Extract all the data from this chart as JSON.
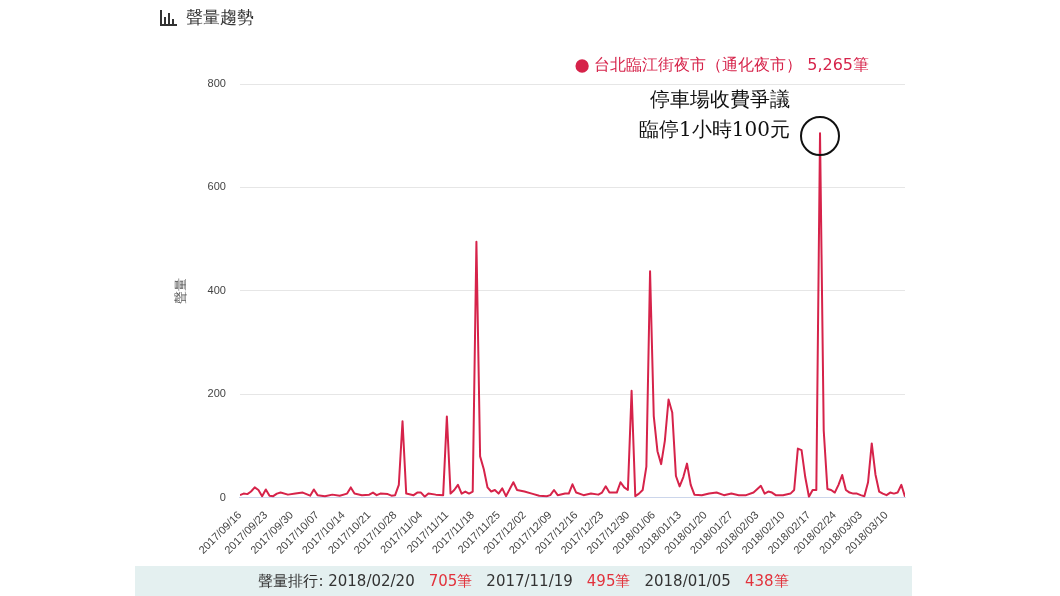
{
  "chart_data": {
    "type": "line",
    "title": "聲量趨勢",
    "ylabel": "聲量",
    "xlim": [
      "2017-09-16",
      "2018-03-15"
    ],
    "xticks": [
      {
        "value": "2017-09-16",
        "label": "2017/09/16"
      },
      {
        "value": "2017-09-23",
        "label": "2017/09/23"
      },
      {
        "value": "2017-09-30",
        "label": "2017/09/30"
      },
      {
        "value": "2017-10-07",
        "label": "2017/10/07"
      },
      {
        "value": "2017-10-14",
        "label": "2017/10/14"
      },
      {
        "value": "2017-10-21",
        "label": "2017/10/21"
      },
      {
        "value": "2017-10-28",
        "label": "2017/10/28"
      },
      {
        "value": "2017-11-04",
        "label": "2017/11/04"
      },
      {
        "value": "2017-11-11",
        "label": "2017/11/11"
      },
      {
        "value": "2017-11-18",
        "label": "2017/11/18"
      },
      {
        "value": "2017-11-25",
        "label": "2017/11/25"
      },
      {
        "value": "2017-12-02",
        "label": "2017/12/02"
      },
      {
        "value": "2017-12-09",
        "label": "2017/12/09"
      },
      {
        "value": "2017-12-16",
        "label": "2017/12/16"
      },
      {
        "value": "2017-12-23",
        "label": "2017/12/23"
      },
      {
        "value": "2017-12-30",
        "label": "2017/12/30"
      },
      {
        "value": "2018-01-06",
        "label": "2018/01/06"
      },
      {
        "value": "2018-01-13",
        "label": "2018/01/13"
      },
      {
        "value": "2018-01-20",
        "label": "2018/01/20"
      },
      {
        "value": "2018-01-27",
        "label": "2018/01/27"
      },
      {
        "value": "2018-02-03",
        "label": "2018/02/03"
      },
      {
        "value": "2018-02-10",
        "label": "2018/02/10"
      },
      {
        "value": "2018-02-17",
        "label": "2018/02/17"
      },
      {
        "value": "2018-02-24",
        "label": "2018/02/24"
      },
      {
        "value": "2018-03-03",
        "label": "2018/03/03"
      },
      {
        "value": "2018-03-10",
        "label": "2018/03/10"
      }
    ],
    "ylim": [
      0,
      800
    ],
    "yticks": [
      0,
      200,
      400,
      600,
      800
    ],
    "grid": "y",
    "legend": "top right",
    "marker": "none",
    "line_style": "solid",
    "x": [
      "2017-09-16",
      "2017-09-17",
      "2017-09-18",
      "2017-09-19",
      "2017-09-20",
      "2017-09-21",
      "2017-09-22",
      "2017-09-23",
      "2017-09-24",
      "2017-09-25",
      "2017-09-26",
      "2017-09-27",
      "2017-09-29",
      "2017-10-01",
      "2017-10-03",
      "2017-10-05",
      "2017-10-06",
      "2017-10-07",
      "2017-10-09",
      "2017-10-11",
      "2017-10-13",
      "2017-10-15",
      "2017-10-16",
      "2017-10-17",
      "2017-10-19",
      "2017-10-21",
      "2017-10-22",
      "2017-10-23",
      "2017-10-24",
      "2017-10-26",
      "2017-10-27",
      "2017-10-28",
      "2017-10-29",
      "2017-10-30",
      "2017-10-31",
      "2017-11-02",
      "2017-11-03",
      "2017-11-04",
      "2017-11-05",
      "2017-11-06",
      "2017-11-08",
      "2017-11-10",
      "2017-11-11",
      "2017-11-12",
      "2017-11-13",
      "2017-11-14",
      "2017-11-15",
      "2017-11-16",
      "2017-11-17",
      "2017-11-18",
      "2017-11-19",
      "2017-11-20",
      "2017-11-21",
      "2017-11-22",
      "2017-11-23",
      "2017-11-24",
      "2017-11-25",
      "2017-11-26",
      "2017-11-27",
      "2017-11-29",
      "2017-11-30",
      "2017-12-02",
      "2017-12-04",
      "2017-12-06",
      "2017-12-08",
      "2017-12-09",
      "2017-12-10",
      "2017-12-11",
      "2017-12-13",
      "2017-12-14",
      "2017-12-15",
      "2017-12-16",
      "2017-12-18",
      "2017-12-20",
      "2017-12-22",
      "2017-12-23",
      "2017-12-24",
      "2017-12-25",
      "2017-12-27",
      "2017-12-28",
      "2017-12-29",
      "2017-12-30",
      "2017-12-31",
      "2018-01-01",
      "2018-01-02",
      "2018-01-03",
      "2018-01-04",
      "2018-01-05",
      "2018-01-06",
      "2018-01-07",
      "2018-01-08",
      "2018-01-09",
      "2018-01-10",
      "2018-01-11",
      "2018-01-12",
      "2018-01-13",
      "2018-01-14",
      "2018-01-15",
      "2018-01-16",
      "2018-01-17",
      "2018-01-19",
      "2018-01-21",
      "2018-01-23",
      "2018-01-25",
      "2018-01-27",
      "2018-01-29",
      "2018-01-31",
      "2018-02-02",
      "2018-02-04",
      "2018-02-05",
      "2018-02-06",
      "2018-02-07",
      "2018-02-08",
      "2018-02-10",
      "2018-02-12",
      "2018-02-13",
      "2018-02-14",
      "2018-02-15",
      "2018-02-16",
      "2018-02-17",
      "2018-02-18",
      "2018-02-19",
      "2018-02-20",
      "2018-02-21",
      "2018-02-22",
      "2018-02-23",
      "2018-02-24",
      "2018-02-25",
      "2018-02-26",
      "2018-02-27",
      "2018-02-28",
      "2018-03-01",
      "2018-03-02",
      "2018-03-03",
      "2018-03-04",
      "2018-03-05",
      "2018-03-06",
      "2018-03-07",
      "2018-03-08",
      "2018-03-09",
      "2018-03-10",
      "2018-03-11",
      "2018-03-12",
      "2018-03-13",
      "2018-03-14",
      "2018-03-15"
    ],
    "series": [
      {
        "name": "台北臨江街夜市（通化夜市） 5,265筆",
        "color": "#d6234a",
        "values": [
          5,
          8,
          7,
          12,
          20,
          15,
          3,
          16,
          4,
          3,
          8,
          10,
          6,
          8,
          10,
          4,
          16,
          5,
          3,
          6,
          4,
          8,
          20,
          8,
          5,
          6,
          10,
          5,
          8,
          7,
          4,
          5,
          25,
          148,
          8,
          5,
          10,
          10,
          2,
          8,
          6,
          5,
          157,
          8,
          15,
          25,
          8,
          12,
          8,
          12,
          495,
          80,
          55,
          20,
          12,
          15,
          8,
          18,
          3,
          30,
          15,
          12,
          8,
          4,
          3,
          5,
          15,
          5,
          8,
          8,
          26,
          10,
          5,
          8,
          6,
          10,
          22,
          10,
          10,
          30,
          20,
          15,
          207,
          3,
          8,
          15,
          60,
          438,
          158,
          90,
          65,
          110,
          190,
          165,
          42,
          22,
          40,
          66,
          25,
          6,
          5,
          8,
          10,
          5,
          8,
          5,
          5,
          10,
          23,
          8,
          12,
          10,
          5,
          5,
          8,
          15,
          95,
          92,
          40,
          2,
          15,
          15,
          705,
          130,
          17,
          15,
          10,
          25,
          44,
          15,
          10,
          8,
          8,
          5,
          3,
          30,
          105,
          45,
          12,
          8,
          5,
          10,
          8,
          10,
          25,
          2
        ]
      }
    ],
    "annotations": [
      {
        "text": "停車場收費爭議",
        "x": "2018-02-20",
        "y": 705
      },
      {
        "text": "臨停1小時100元",
        "x": "2018-02-20",
        "y": 705
      },
      "聲量排行: 2018/02/20",
      "705筆",
      "2017/11/19",
      "495筆",
      "2018/01/05",
      "438筆"
    ]
  }
}
